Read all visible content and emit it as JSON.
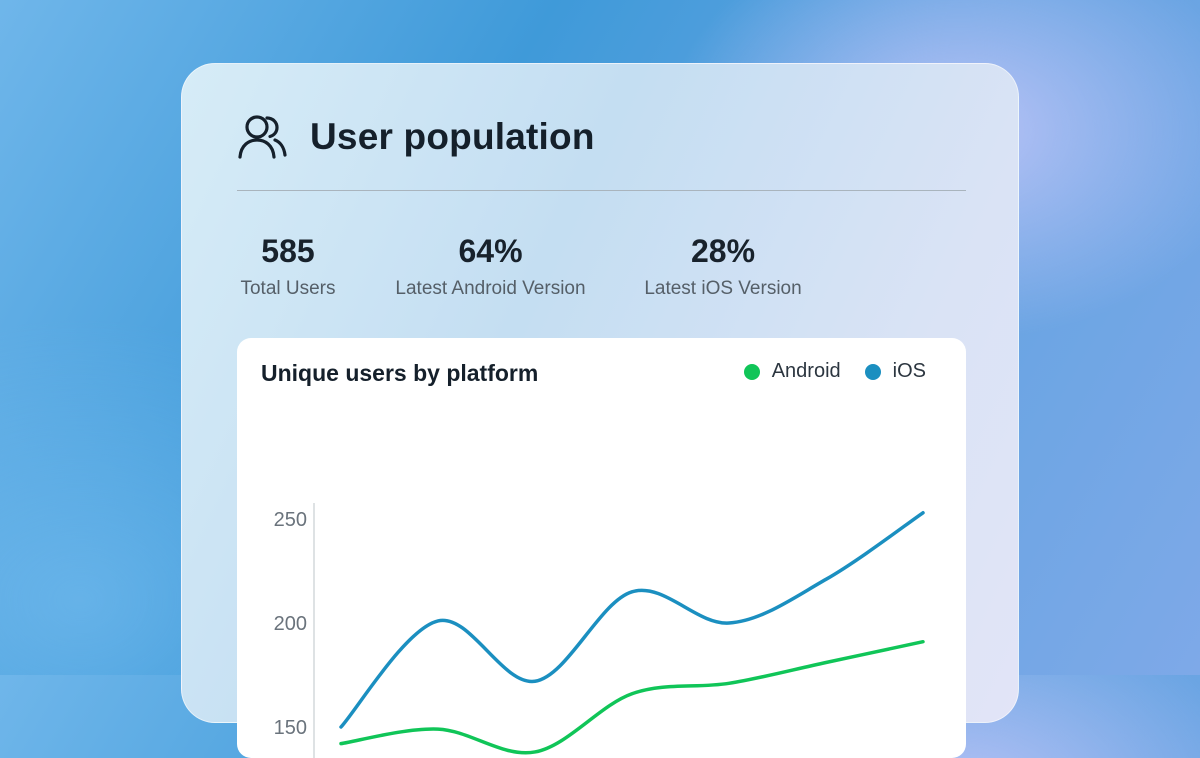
{
  "header": {
    "title": "User population",
    "icon": "users-icon"
  },
  "stats": [
    {
      "value": "585",
      "label": "Total Users"
    },
    {
      "value": "64%",
      "label": "Latest Android Version"
    },
    {
      "value": "28%",
      "label": "Latest iOS Version"
    }
  ],
  "chart": {
    "title": "Unique users by platform",
    "legend": [
      {
        "label": "Android",
        "color": "#10c558"
      },
      {
        "label": "iOS",
        "color": "#1b8fc0"
      }
    ]
  },
  "chart_data": {
    "type": "line",
    "title": "Unique users by platform",
    "xlabel": "",
    "ylabel": "",
    "yticks": [
      150,
      200,
      250
    ],
    "ylim": [
      150,
      250
    ],
    "x": [
      0,
      1,
      2,
      3,
      4,
      5,
      6
    ],
    "series": [
      {
        "name": "iOS",
        "color": "#1b8fc0",
        "values": [
          150,
          201,
          172,
          215,
          200,
          221,
          253
        ]
      },
      {
        "name": "Android",
        "color": "#10c558",
        "values": [
          142,
          149,
          138,
          166,
          171,
          181,
          191
        ]
      }
    ],
    "legend_position": "top-right",
    "grid": false
  }
}
